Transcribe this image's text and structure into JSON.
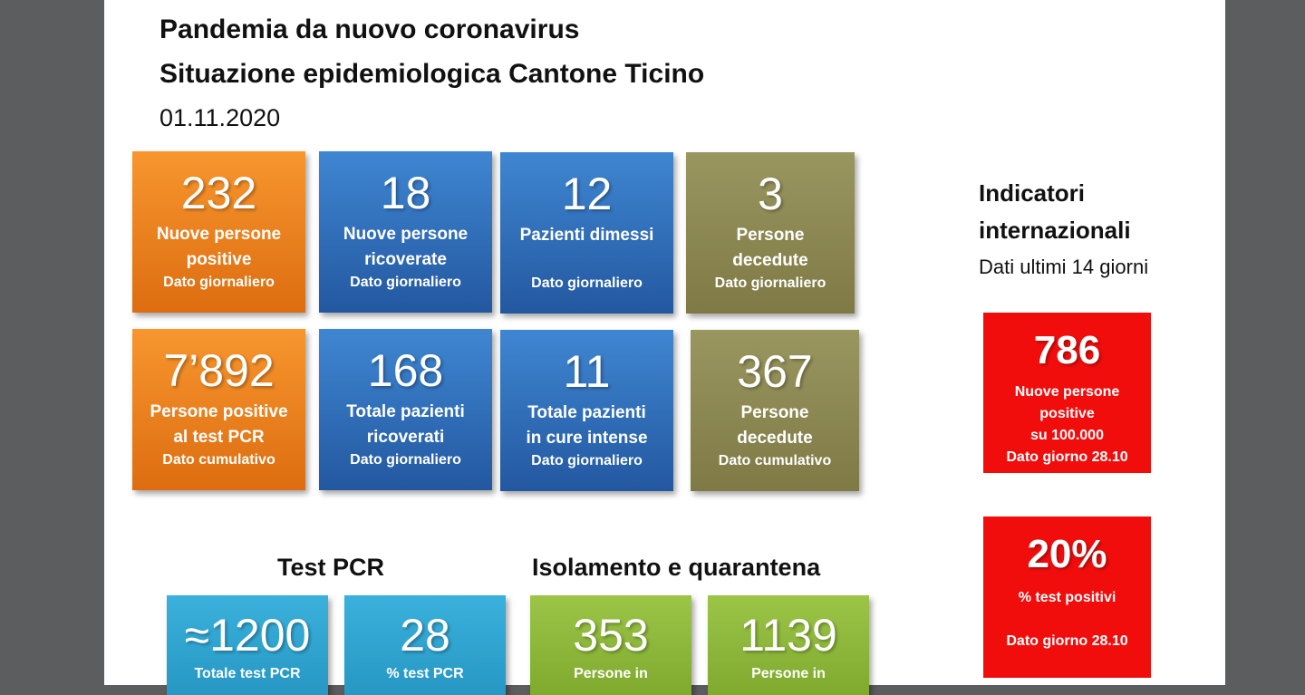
{
  "header": {
    "title1": "Pandemia da nuovo coronavirus",
    "title2": "Situazione epidemiologica Cantone Ticino",
    "date": "01.11.2020"
  },
  "row1": [
    {
      "value": "232",
      "label1": "Nuove persone",
      "label2": "positive",
      "sub": "Dato giornaliero"
    },
    {
      "value": "18",
      "label1": "Nuove persone",
      "label2": "ricoverate",
      "sub": "Dato giornaliero"
    },
    {
      "value": "12",
      "label1": "Pazienti dimessi",
      "label2": "",
      "sub": "Dato giornaliero"
    },
    {
      "value": "3",
      "label1": "Persone",
      "label2": "decedute",
      "sub": "Dato giornaliero"
    }
  ],
  "row2": [
    {
      "value": "7’892",
      "label1": "Persone positive",
      "label2": "al test PCR",
      "sub": "Dato cumulativo"
    },
    {
      "value": "168",
      "label1": "Totale pazienti",
      "label2": "ricoverati",
      "sub": "Dato giornaliero"
    },
    {
      "value": "11",
      "label1": "Totale pazienti",
      "label2": "in cure intense",
      "sub": "Dato giornaliero"
    },
    {
      "value": "367",
      "label1": "Persone",
      "label2": "decedute",
      "sub": "Dato cumulativo"
    }
  ],
  "international": {
    "title1": "Indicatori",
    "title2": "internazionali",
    "subtitle": "Dati ultimi 14 giorni",
    "cards": [
      {
        "value": "786",
        "l1": "Nuove persone",
        "l2": "positive",
        "l3": "su 100.000",
        "sub": "Dato giorno 28.10"
      },
      {
        "value": "20%",
        "l1": "% test positivi",
        "sub": "Dato giorno 28.10"
      }
    ]
  },
  "pcr": {
    "heading": "Test PCR",
    "cards": [
      {
        "value": "≈1200",
        "label": "Totale test PCR"
      },
      {
        "value": "28",
        "label": "% test  PCR"
      }
    ]
  },
  "isolation": {
    "heading": "Isolamento e quarantena",
    "cards": [
      {
        "value": "353",
        "label": "Persone in"
      },
      {
        "value": "1139",
        "label": "Persone in"
      }
    ]
  },
  "colors": {
    "orange": "#f08a24",
    "blue": "#2f6fba",
    "olive": "#8c8852",
    "red": "#f20d0d",
    "cyan": "#30a6d2",
    "green": "#8db83a"
  }
}
